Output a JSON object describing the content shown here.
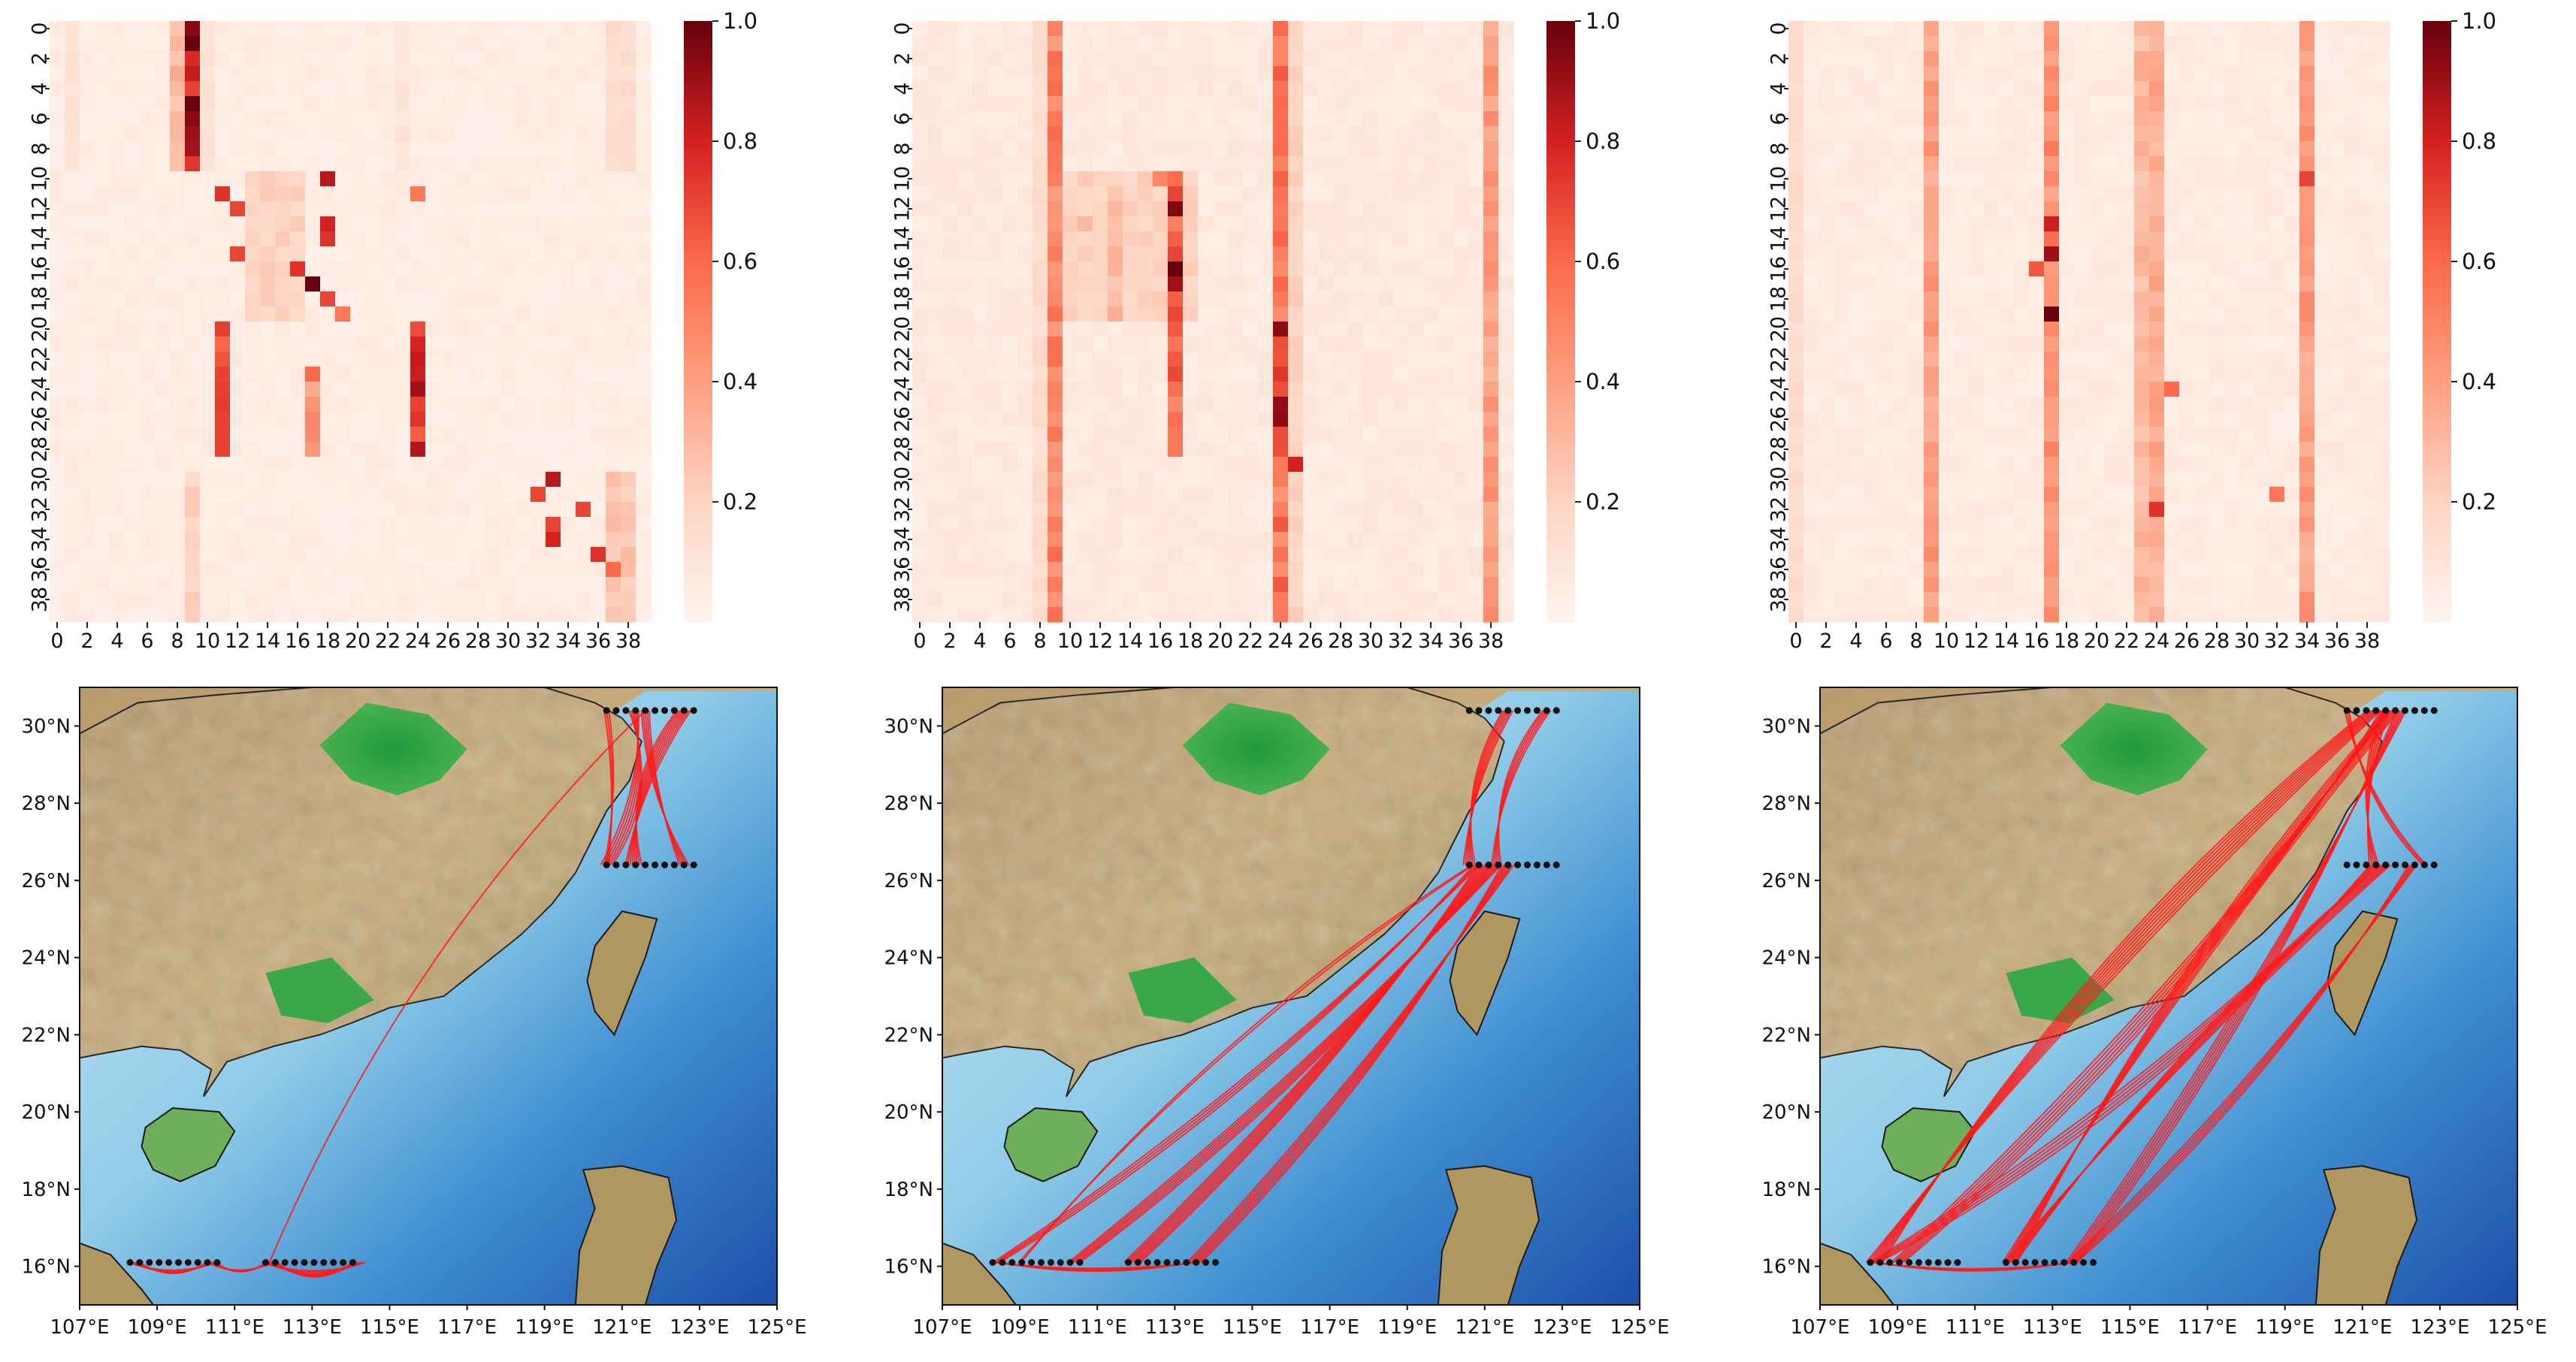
{
  "chart_data": [
    {
      "type": "heatmap",
      "panel": "top-left",
      "matrix_size": 40,
      "tick_labels": [
        "0",
        "2",
        "4",
        "6",
        "8",
        "10",
        "12",
        "14",
        "16",
        "18",
        "20",
        "22",
        "24",
        "26",
        "28",
        "30",
        "32",
        "34",
        "36",
        "38"
      ],
      "colorbar": {
        "range": [
          0,
          1.0
        ],
        "ticks": [
          "0.2",
          "0.4",
          "0.6",
          "0.8",
          "1.0"
        ],
        "colormap": "Reds"
      },
      "background_value": 0.05,
      "cells": [
        {
          "r": [
            0,
            9
          ],
          "c": [
            9
          ],
          "v": 0.85
        },
        {
          "r": [
            0,
            9
          ],
          "c": [
            8
          ],
          "v": 0.3
        },
        {
          "r": [
            0,
            9
          ],
          "c": [
            10
          ],
          "v": 0.12
        },
        {
          "r": [
            0,
            9
          ],
          "c": [
            1
          ],
          "v": 0.12
        },
        {
          "r": [
            0,
            9
          ],
          "c": [
            23
          ],
          "v": 0.1
        },
        {
          "r": [
            0,
            9
          ],
          "c": [
            37,
            38
          ],
          "v": 0.15
        },
        {
          "r": [
            10
          ],
          "c": [
            18
          ],
          "v": 0.85
        },
        {
          "r": [
            11
          ],
          "c": [
            11
          ],
          "v": 0.75
        },
        {
          "r": [
            12
          ],
          "c": [
            12
          ],
          "v": 0.7
        },
        {
          "r": [
            13
          ],
          "c": [
            18
          ],
          "v": 0.8
        },
        {
          "r": [
            14
          ],
          "c": [
            18
          ],
          "v": 0.75
        },
        {
          "r": [
            15
          ],
          "c": [
            12
          ],
          "v": 0.7
        },
        {
          "r": [
            16
          ],
          "c": [
            16
          ],
          "v": 0.75
        },
        {
          "r": [
            17
          ],
          "c": [
            17
          ],
          "v": 1.0
        },
        {
          "r": [
            18
          ],
          "c": [
            18
          ],
          "v": 0.7
        },
        {
          "r": [
            19
          ],
          "c": [
            19
          ],
          "v": 0.55
        },
        {
          "r": [
            20,
            28
          ],
          "c": [
            11
          ],
          "v": 0.65
        },
        {
          "r": [
            20,
            28
          ],
          "c": [
            24
          ],
          "v": 0.75
        },
        {
          "r": [
            23
          ],
          "c": [
            17
          ],
          "v": 0.6
        },
        {
          "r": [
            24,
            28
          ],
          "c": [
            17
          ],
          "v": 0.45
        },
        {
          "r": [
            11
          ],
          "c": [
            24
          ],
          "v": 0.55
        },
        {
          "r": [
            10,
            19
          ],
          "c": [
            13,
            16
          ],
          "v": 0.2
        },
        {
          "r": [
            30
          ],
          "c": [
            33
          ],
          "v": 0.85
        },
        {
          "r": [
            31
          ],
          "c": [
            32
          ],
          "v": 0.7
        },
        {
          "r": [
            32
          ],
          "c": [
            35
          ],
          "v": 0.7
        },
        {
          "r": [
            33
          ],
          "c": [
            33
          ],
          "v": 0.7
        },
        {
          "r": [
            34
          ],
          "c": [
            33
          ],
          "v": 0.8
        },
        {
          "r": [
            35
          ],
          "c": [
            36
          ],
          "v": 0.75
        },
        {
          "r": [
            36
          ],
          "c": [
            37
          ],
          "v": 0.6
        },
        {
          "r": [
            30,
            39
          ],
          "c": [
            37,
            38
          ],
          "v": 0.25
        },
        {
          "r": [
            30,
            39
          ],
          "c": [
            9
          ],
          "v": 0.2
        }
      ]
    },
    {
      "type": "heatmap",
      "panel": "top-middle",
      "matrix_size": 40,
      "tick_labels": [
        "0",
        "2",
        "4",
        "6",
        "8",
        "10",
        "12",
        "14",
        "16",
        "18",
        "20",
        "22",
        "24",
        "26",
        "28",
        "30",
        "32",
        "34",
        "36",
        "38"
      ],
      "colorbar": {
        "range": [
          0,
          1.0
        ],
        "ticks": [
          "0.2",
          "0.4",
          "0.6",
          "0.8",
          "1.0"
        ],
        "colormap": "Reds"
      },
      "background_value": 0.07,
      "cells": [
        {
          "r": [
            0,
            39
          ],
          "c": [
            9
          ],
          "v": 0.5
        },
        {
          "r": [
            0,
            39
          ],
          "c": [
            24
          ],
          "v": 0.55
        },
        {
          "r": [
            0,
            39
          ],
          "c": [
            38
          ],
          "v": 0.4
        },
        {
          "r": [
            0,
            39
          ],
          "c": [
            8
          ],
          "v": 0.15
        },
        {
          "r": [
            0,
            39
          ],
          "c": [
            25
          ],
          "v": 0.2
        },
        {
          "r": [
            10,
            19
          ],
          "c": [
            10,
            18
          ],
          "v": 0.2
        },
        {
          "r": [
            10,
            28
          ],
          "c": [
            17
          ],
          "v": 0.6
        },
        {
          "r": [
            12
          ],
          "c": [
            17
          ],
          "v": 0.95
        },
        {
          "r": [
            16,
            17
          ],
          "c": [
            17
          ],
          "v": 0.95
        },
        {
          "r": [
            20,
            28
          ],
          "c": [
            24
          ],
          "v": 0.8
        },
        {
          "r": [
            29
          ],
          "c": [
            25
          ],
          "v": 0.8
        },
        {
          "r": [
            11,
            19
          ],
          "c": [
            13
          ],
          "v": 0.3
        },
        {
          "r": [
            13
          ],
          "c": [
            11
          ],
          "v": 0.3
        },
        {
          "r": [
            10
          ],
          "c": [
            16
          ],
          "v": 0.5
        }
      ]
    },
    {
      "type": "heatmap",
      "panel": "top-right",
      "matrix_size": 40,
      "tick_labels": [
        "0",
        "2",
        "4",
        "6",
        "8",
        "10",
        "12",
        "14",
        "16",
        "18",
        "20",
        "22",
        "24",
        "26",
        "28",
        "30",
        "32",
        "34",
        "36",
        "38"
      ],
      "colorbar": {
        "range": [
          0,
          1.0
        ],
        "ticks": [
          "0.2",
          "0.4",
          "0.6",
          "0.8",
          "1.0"
        ],
        "colormap": "Reds"
      },
      "background_value": 0.06,
      "cells": [
        {
          "r": [
            0,
            39
          ],
          "c": [
            9
          ],
          "v": 0.4
        },
        {
          "r": [
            0,
            39
          ],
          "c": [
            17
          ],
          "v": 0.45
        },
        {
          "r": [
            0,
            39
          ],
          "c": [
            23
          ],
          "v": 0.3
        },
        {
          "r": [
            0,
            39
          ],
          "c": [
            24
          ],
          "v": 0.35
        },
        {
          "r": [
            0,
            39
          ],
          "c": [
            34
          ],
          "v": 0.4
        },
        {
          "r": [
            0,
            39
          ],
          "c": [
            0
          ],
          "v": 0.15
        },
        {
          "r": [
            15
          ],
          "c": [
            17
          ],
          "v": 0.9
        },
        {
          "r": [
            19
          ],
          "c": [
            17
          ],
          "v": 1.0
        },
        {
          "r": [
            13,
            14
          ],
          "c": [
            17
          ],
          "v": 0.7
        },
        {
          "r": [
            16
          ],
          "c": [
            16
          ],
          "v": 0.65
        },
        {
          "r": [
            32
          ],
          "c": [
            24
          ],
          "v": 0.75
        },
        {
          "r": [
            24
          ],
          "c": [
            25
          ],
          "v": 0.6
        },
        {
          "r": [
            10
          ],
          "c": [
            34
          ],
          "v": 0.7
        },
        {
          "r": [
            31
          ],
          "c": [
            32
          ],
          "v": 0.55
        }
      ]
    },
    {
      "type": "map",
      "panel": "bottom-left",
      "lon_range": [
        107,
        125
      ],
      "lat_range": [
        15,
        31
      ],
      "x_tick_labels": [
        "107°E",
        "109°E",
        "111°E",
        "113°E",
        "115°E",
        "117°E",
        "119°E",
        "121°E",
        "123°E",
        "125°E"
      ],
      "y_tick_labels": [
        "16°N",
        "18°N",
        "20°N",
        "22°N",
        "24°N",
        "26°N",
        "28°N",
        "30°N"
      ],
      "station_clusters": [
        {
          "lon_start": 108.3,
          "lat": 16.1,
          "count": 10,
          "step": 0.25
        },
        {
          "lon_start": 111.8,
          "lat": 16.1,
          "count": 10,
          "step": 0.25
        },
        {
          "lon_start": 120.6,
          "lat": 26.4,
          "count": 10,
          "step": 0.25
        },
        {
          "lon_start": 120.6,
          "lat": 30.4,
          "count": 10,
          "step": 0.25
        }
      ],
      "links": [
        {
          "from": [
            108.4,
            16.1
          ],
          "to": [
            110.4,
            16.1
          ],
          "n": 6,
          "bend": 0.5
        },
        {
          "from": [
            110.4,
            16.1
          ],
          "to": [
            111.9,
            16.1
          ],
          "n": 5,
          "bend": 0.6
        },
        {
          "from": [
            111.9,
            16.1
          ],
          "to": [
            114.2,
            16.1
          ],
          "n": 8,
          "bend": 0.55
        },
        {
          "from": [
            120.6,
            26.4
          ],
          "to": [
            121.3,
            30.4
          ],
          "n": 6,
          "bend": 0.4
        },
        {
          "from": [
            121.3,
            26.4
          ],
          "to": [
            122.6,
            30.4
          ],
          "n": 8,
          "bend": -0.35
        },
        {
          "from": [
            122.6,
            26.4
          ],
          "to": [
            121.6,
            30.4
          ],
          "n": 5,
          "bend": -0.2
        },
        {
          "from": [
            120.6,
            30.4
          ],
          "to": [
            120.6,
            26.4
          ],
          "n": 3,
          "bend": -0.15
        },
        {
          "from": [
            111.9,
            16.1
          ],
          "to": [
            121.6,
            30.4
          ],
          "n": 1,
          "bend": -0.2
        }
      ]
    },
    {
      "type": "map",
      "panel": "bottom-middle",
      "lon_range": [
        107,
        125
      ],
      "lat_range": [
        15,
        31
      ],
      "x_tick_labels": [
        "107°E",
        "109°E",
        "111°E",
        "113°E",
        "115°E",
        "117°E",
        "119°E",
        "121°E",
        "123°E",
        "125°E"
      ],
      "y_tick_labels": [
        "16°N",
        "18°N",
        "20°N",
        "22°N",
        "24°N",
        "26°N",
        "28°N",
        "30°N"
      ],
      "station_clusters": [
        {
          "lon_start": 108.3,
          "lat": 16.1,
          "count": 10,
          "step": 0.25
        },
        {
          "lon_start": 111.8,
          "lat": 16.1,
          "count": 10,
          "step": 0.25
        },
        {
          "lon_start": 120.6,
          "lat": 26.4,
          "count": 10,
          "step": 0.25
        },
        {
          "lon_start": 120.6,
          "lat": 30.4,
          "count": 10,
          "step": 0.25
        }
      ],
      "links": [
        {
          "from": [
            108.4,
            16.1
          ],
          "to": [
            120.8,
            26.4
          ],
          "n": 4,
          "bend": 0.12
        },
        {
          "from": [
            110.4,
            16.1
          ],
          "to": [
            121.3,
            26.4
          ],
          "n": 6,
          "bend": 0.1
        },
        {
          "from": [
            111.9,
            16.1
          ],
          "to": [
            121.0,
            26.4
          ],
          "n": 8,
          "bend": 0.08
        },
        {
          "from": [
            113.5,
            16.1
          ],
          "to": [
            121.6,
            26.4
          ],
          "n": 7,
          "bend": 0.1
        },
        {
          "from": [
            108.4,
            16.1
          ],
          "to": [
            113.5,
            16.1
          ],
          "n": 5,
          "bend": 0.15
        },
        {
          "from": [
            109.0,
            16.1
          ],
          "to": [
            120.7,
            26.4
          ],
          "n": 2,
          "bend": -0.15
        },
        {
          "from": [
            120.6,
            26.4
          ],
          "to": [
            121.6,
            30.4
          ],
          "n": 6,
          "bend": -0.3
        },
        {
          "from": [
            121.3,
            26.4
          ],
          "to": [
            122.6,
            30.4
          ],
          "n": 5,
          "bend": -0.35
        }
      ]
    },
    {
      "type": "map",
      "panel": "bottom-right",
      "lon_range": [
        107,
        125
      ],
      "lat_range": [
        15,
        31
      ],
      "x_tick_labels": [
        "107°E",
        "109°E",
        "111°E",
        "113°E",
        "115°E",
        "117°E",
        "119°E",
        "121°E",
        "123°E",
        "125°E"
      ],
      "y_tick_labels": [
        "16°N",
        "18°N",
        "20°N",
        "22°N",
        "24°N",
        "26°N",
        "28°N",
        "30°N"
      ],
      "station_clusters": [
        {
          "lon_start": 108.3,
          "lat": 16.1,
          "count": 10,
          "step": 0.25
        },
        {
          "lon_start": 111.8,
          "lat": 16.1,
          "count": 10,
          "step": 0.25
        },
        {
          "lon_start": 120.6,
          "lat": 26.4,
          "count": 10,
          "step": 0.25
        },
        {
          "lon_start": 120.6,
          "lat": 30.4,
          "count": 10,
          "step": 0.25
        }
      ],
      "links": [
        {
          "from": [
            108.4,
            16.1
          ],
          "to": [
            121.3,
            30.4
          ],
          "n": 8,
          "bend": -0.12
        },
        {
          "from": [
            109.0,
            16.1
          ],
          "to": [
            121.6,
            30.4
          ],
          "n": 6,
          "bend": 0.12
        },
        {
          "from": [
            111.9,
            16.1
          ],
          "to": [
            121.8,
            30.4
          ],
          "n": 7,
          "bend": -0.1
        },
        {
          "from": [
            113.5,
            16.1
          ],
          "to": [
            122.0,
            30.4
          ],
          "n": 6,
          "bend": 0.1
        },
        {
          "from": [
            108.4,
            16.1
          ],
          "to": [
            121.3,
            26.4
          ],
          "n": 5,
          "bend": 0.15
        },
        {
          "from": [
            111.9,
            16.1
          ],
          "to": [
            121.6,
            26.4
          ],
          "n": 6,
          "bend": -0.1
        },
        {
          "from": [
            113.5,
            16.1
          ],
          "to": [
            122.3,
            26.4
          ],
          "n": 5,
          "bend": 0.12
        },
        {
          "from": [
            108.4,
            16.1
          ],
          "to": [
            113.5,
            16.1
          ],
          "n": 4,
          "bend": 0.15
        },
        {
          "from": [
            121.3,
            26.4
          ],
          "to": [
            121.6,
            30.4
          ],
          "n": 5,
          "bend": -0.3
        },
        {
          "from": [
            120.6,
            30.4
          ],
          "to": [
            122.6,
            26.4
          ],
          "n": 3,
          "bend": 0.3
        }
      ]
    }
  ]
}
